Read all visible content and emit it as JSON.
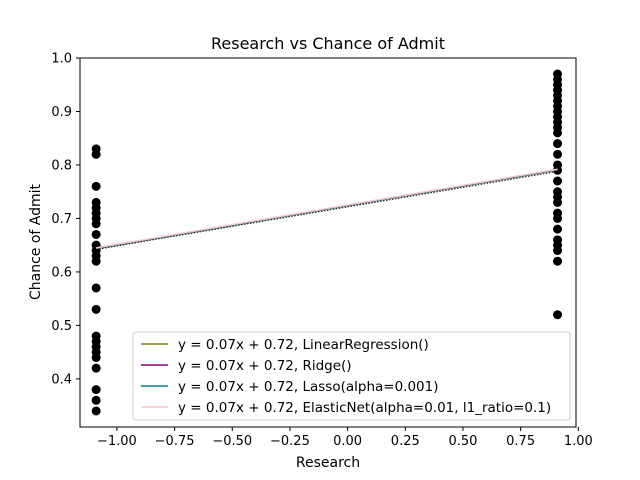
{
  "chart_data": {
    "type": "scatter",
    "title": "Research vs Chance of Admit",
    "xlabel": "Research",
    "ylabel": "Chance of Admit",
    "xlim": [
      -1.16,
      0.99
    ],
    "ylim": [
      0.31,
      1.0
    ],
    "xticks": [
      -1.0,
      -0.75,
      -0.5,
      -0.25,
      0.0,
      0.25,
      0.5,
      0.75,
      1.0
    ],
    "xtick_labels": [
      "−1.00",
      "−0.75",
      "−0.50",
      "−0.25",
      "0.00",
      "0.25",
      "0.50",
      "0.75",
      "1.00"
    ],
    "yticks": [
      0.4,
      0.5,
      0.6,
      0.7,
      0.8,
      0.9,
      1.0
    ],
    "ytick_labels": [
      "0.4",
      "0.5",
      "0.6",
      "0.7",
      "0.8",
      "0.9",
      "1.0"
    ],
    "grid": false,
    "legend_position": "lower right",
    "scatter": {
      "color": "#000000",
      "points": [
        [
          -1.09,
          0.34
        ],
        [
          -1.09,
          0.36
        ],
        [
          -1.09,
          0.38
        ],
        [
          -1.09,
          0.42
        ],
        [
          -1.09,
          0.44
        ],
        [
          -1.09,
          0.45
        ],
        [
          -1.09,
          0.46
        ],
        [
          -1.09,
          0.47
        ],
        [
          -1.09,
          0.48
        ],
        [
          -1.09,
          0.53
        ],
        [
          -1.09,
          0.57
        ],
        [
          -1.09,
          0.62
        ],
        [
          -1.09,
          0.63
        ],
        [
          -1.09,
          0.64
        ],
        [
          -1.09,
          0.65
        ],
        [
          -1.09,
          0.67
        ],
        [
          -1.09,
          0.69
        ],
        [
          -1.09,
          0.7
        ],
        [
          -1.09,
          0.71
        ],
        [
          -1.09,
          0.72
        ],
        [
          -1.09,
          0.73
        ],
        [
          -1.09,
          0.76
        ],
        [
          -1.09,
          0.82
        ],
        [
          -1.09,
          0.83
        ],
        [
          0.91,
          0.52
        ],
        [
          0.91,
          0.62
        ],
        [
          0.91,
          0.64
        ],
        [
          0.91,
          0.65
        ],
        [
          0.91,
          0.66
        ],
        [
          0.91,
          0.68
        ],
        [
          0.91,
          0.7
        ],
        [
          0.91,
          0.71
        ],
        [
          0.91,
          0.73
        ],
        [
          0.91,
          0.74
        ],
        [
          0.91,
          0.75
        ],
        [
          0.91,
          0.77
        ],
        [
          0.91,
          0.79
        ],
        [
          0.91,
          0.8
        ],
        [
          0.91,
          0.82
        ],
        [
          0.91,
          0.84
        ],
        [
          0.91,
          0.86
        ],
        [
          0.91,
          0.87
        ],
        [
          0.91,
          0.88
        ],
        [
          0.91,
          0.89
        ],
        [
          0.91,
          0.9
        ],
        [
          0.91,
          0.91
        ],
        [
          0.91,
          0.92
        ],
        [
          0.91,
          0.93
        ],
        [
          0.91,
          0.94
        ],
        [
          0.91,
          0.95
        ],
        [
          0.91,
          0.96
        ],
        [
          0.91,
          0.97
        ]
      ]
    },
    "dotted_line": {
      "color": "#000000",
      "x": [
        -1.09,
        0.91
      ],
      "y": [
        0.642,
        0.788
      ]
    },
    "series": [
      {
        "name": "y = 0.07x + 0.72, LinearRegression()",
        "color": "#808000",
        "x": [
          -1.09,
          0.91
        ],
        "y": [
          0.644,
          0.791
        ]
      },
      {
        "name": "y = 0.07x + 0.72, Ridge()",
        "color": "#800080",
        "x": [
          -1.09,
          0.91
        ],
        "y": [
          0.644,
          0.791
        ]
      },
      {
        "name": "y = 0.07x + 0.72, Lasso(alpha=0.001)",
        "color": "#008080",
        "x": [
          -1.09,
          0.91
        ],
        "y": [
          0.644,
          0.791
        ]
      },
      {
        "name": "y = 0.07x + 0.72, ElasticNet(alpha=0.01, l1_ratio=0.1)",
        "color": "#ffc0cb",
        "x": [
          -1.09,
          0.91
        ],
        "y": [
          0.645,
          0.792
        ]
      }
    ]
  }
}
